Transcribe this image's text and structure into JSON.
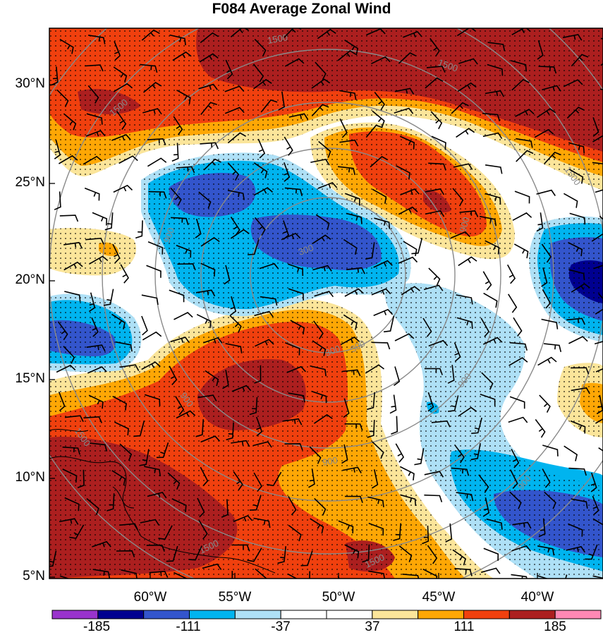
{
  "title": "F084 Average Zonal Wind",
  "map": {
    "lat_labels": [
      "30°N",
      "25°N",
      "20°N",
      "15°N",
      "10°N",
      "5°N"
    ],
    "lon_labels": [
      "60°W",
      "55°W",
      "50°W",
      "45°W",
      "40°W"
    ],
    "contour_labels": [
      "1500",
      "1500",
      "1500",
      "1500",
      "900",
      "900",
      "900",
      "900",
      "900",
      "900",
      "300",
      "300",
      "300",
      "1500",
      "1500",
      "1500"
    ],
    "fill_colors": {
      "strong_neg": "#000090",
      "neg3": "#3355cc",
      "neg2": "#00aaee",
      "neg1": "#aee0f6",
      "zero": "#ffffff",
      "pos1": "#fbe59a",
      "pos2": "#fea705",
      "pos3": "#f0400e",
      "pos4": "#ac1f1f"
    }
  },
  "colorbar": {
    "colors": [
      "#9933cc",
      "#000090",
      "#3355cc",
      "#00b4ef",
      "#aee0f6",
      "#ffffff",
      "#ffffff",
      "#fbe59a",
      "#fea705",
      "#f0400e",
      "#ac1f1f",
      "#ff88b4"
    ],
    "labels": [
      "-185",
      "-111",
      "-37",
      "37",
      "111",
      "185"
    ]
  }
}
